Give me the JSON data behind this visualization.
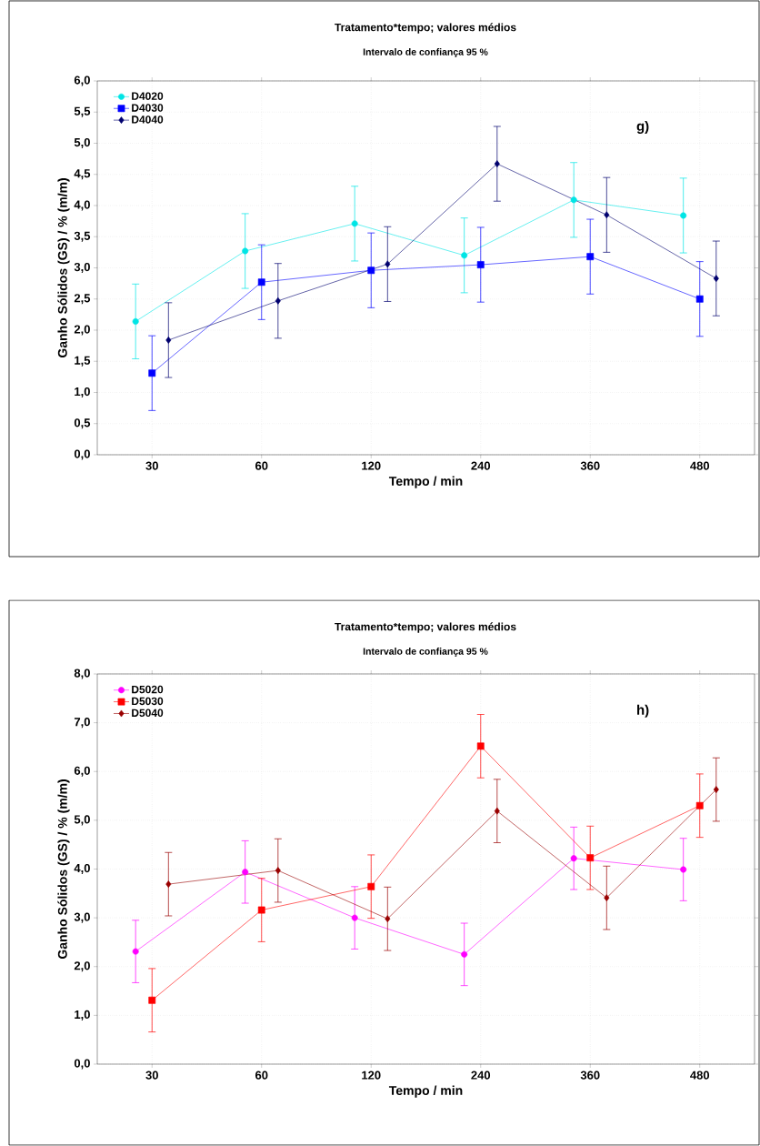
{
  "chart_data": [
    {
      "type": "line",
      "title": "Tratamento*tempo; valores médios",
      "subtitle": "Intervalo de confiança 95 %",
      "xlabel": "Tempo / min",
      "ylabel": "Ganho Sólidos (GS) / % (m/m)",
      "annotations": [
        "g)"
      ],
      "categories": [
        "30",
        "60",
        "120",
        "240",
        "360",
        "480"
      ],
      "series": [
        {
          "name": "D4020",
          "color": "#00e5e5",
          "marker": "circle",
          "values": [
            2.14,
            3.27,
            3.71,
            3.2,
            4.09,
            3.84
          ],
          "errors": [
            0.6,
            0.6,
            0.6,
            0.6,
            0.6,
            0.6
          ]
        },
        {
          "name": "D4030",
          "color": "#0000ff",
          "marker": "square",
          "values": [
            1.31,
            2.77,
            2.96,
            3.05,
            3.18,
            2.5
          ],
          "errors": [
            0.6,
            0.6,
            0.6,
            0.6,
            0.6,
            0.6
          ]
        },
        {
          "name": "D4040",
          "color": "#00006e",
          "marker": "diamond",
          "values": [
            1.84,
            2.47,
            3.06,
            4.67,
            3.85,
            2.83
          ],
          "errors": [
            0.6,
            0.6,
            0.6,
            0.6,
            0.6,
            0.6
          ]
        }
      ],
      "ylim": [
        0,
        6
      ],
      "yticks": [
        {
          "value": 0,
          "label": "0,0"
        },
        {
          "value": 0.5,
          "label": "0,5"
        },
        {
          "value": 1,
          "label": "1,0"
        },
        {
          "value": 1.5,
          "label": "1,5"
        },
        {
          "value": 2,
          "label": "2,0"
        },
        {
          "value": 2.5,
          "label": "2,5"
        },
        {
          "value": 3,
          "label": "3,0"
        },
        {
          "value": 3.5,
          "label": "3,5"
        },
        {
          "value": 4,
          "label": "4,0"
        },
        {
          "value": 4.5,
          "label": "4,5"
        },
        {
          "value": 5,
          "label": "5,0"
        },
        {
          "value": 5.5,
          "label": "5,5"
        },
        {
          "value": 6,
          "label": "6,0"
        }
      ],
      "grid": true,
      "legend": "top left"
    },
    {
      "type": "line",
      "title": "Tratamento*tempo; valores médios",
      "subtitle": "Intervalo de confiança 95 %",
      "xlabel": "Tempo / min",
      "ylabel": "Ganho Sólidos (GS) / % (m/m)",
      "annotations": [
        "h)"
      ],
      "categories": [
        "30",
        "60",
        "120",
        "240",
        "360",
        "480"
      ],
      "series": [
        {
          "name": "D5020",
          "color": "#ff00ff",
          "marker": "circle",
          "values": [
            2.31,
            3.94,
            3.0,
            2.25,
            4.22,
            3.99
          ],
          "errors": [
            0.64,
            0.64,
            0.64,
            0.64,
            0.64,
            0.64
          ]
        },
        {
          "name": "D5030",
          "color": "#ff0000",
          "marker": "square",
          "values": [
            1.31,
            3.16,
            3.64,
            6.52,
            4.23,
            5.3
          ],
          "errors": [
            0.65,
            0.65,
            0.65,
            0.65,
            0.65,
            0.65
          ]
        },
        {
          "name": "D5040",
          "color": "#990000",
          "marker": "diamond",
          "values": [
            3.69,
            3.97,
            2.98,
            5.19,
            3.41,
            5.63
          ],
          "errors": [
            0.65,
            0.65,
            0.65,
            0.65,
            0.65,
            0.65
          ]
        }
      ],
      "ylim": [
        0,
        8
      ],
      "yticks": [
        {
          "value": 0,
          "label": "0,0"
        },
        {
          "value": 1,
          "label": "1,0"
        },
        {
          "value": 2,
          "label": "2,0"
        },
        {
          "value": 3,
          "label": "3,0"
        },
        {
          "value": 4,
          "label": "4,0"
        },
        {
          "value": 5,
          "label": "5,0"
        },
        {
          "value": 6,
          "label": "6,0"
        },
        {
          "value": 7,
          "label": "7,0"
        },
        {
          "value": 8,
          "label": "8,0"
        }
      ],
      "grid": true,
      "legend": "top left"
    }
  ]
}
